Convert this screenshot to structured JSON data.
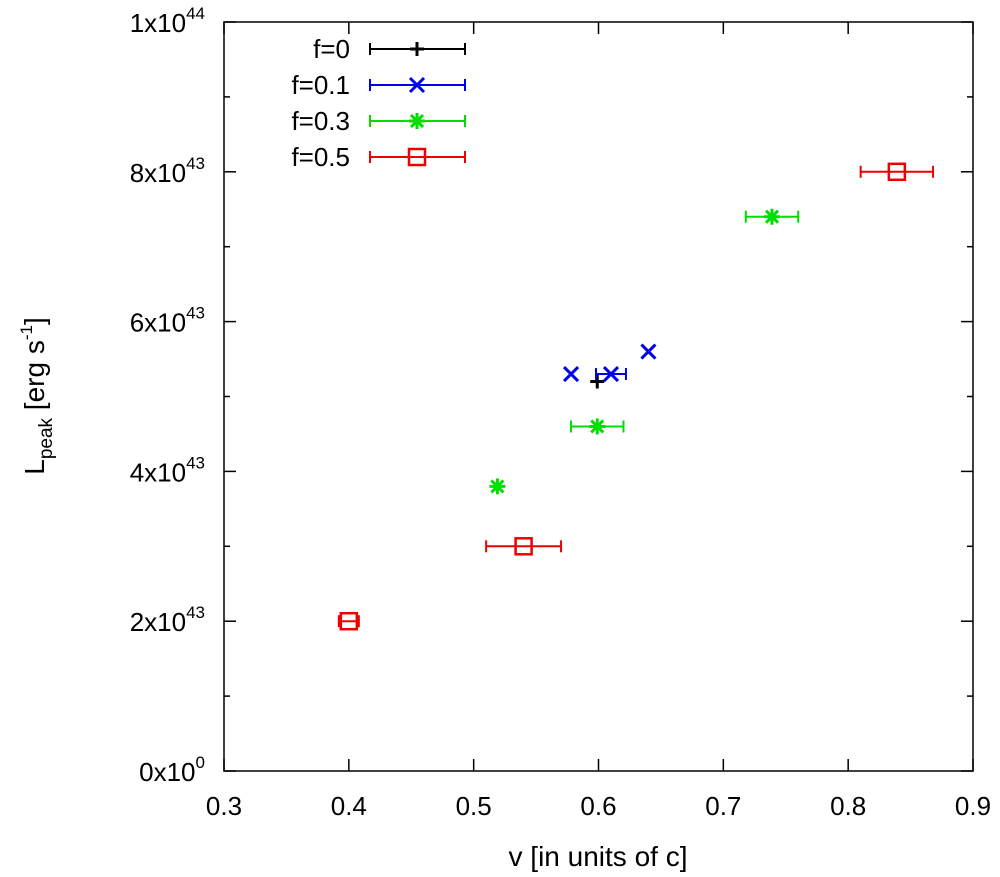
{
  "chart_data": {
    "type": "scatter",
    "title": "",
    "xlabel": "v [in units of c]",
    "ylabel": {
      "base": "L",
      "sub": "peak",
      "text": " [erg s",
      "sup": "-1",
      "close": "]"
    },
    "xlim": [
      0.3,
      0.9
    ],
    "ylim": [
      0,
      1e+44
    ],
    "x_ticks": [
      {
        "value": 0.3,
        "label": "0.3"
      },
      {
        "value": 0.4,
        "label": "0.4"
      },
      {
        "value": 0.5,
        "label": "0.5"
      },
      {
        "value": 0.6,
        "label": "0.6"
      },
      {
        "value": 0.7,
        "label": "0.7"
      },
      {
        "value": 0.8,
        "label": "0.8"
      },
      {
        "value": 0.9,
        "label": "0.9"
      }
    ],
    "y_ticks": [
      {
        "value": 0,
        "mant": "0x10",
        "exp": "0"
      },
      {
        "value": 2e+43,
        "mant": "2x10",
        "exp": "43"
      },
      {
        "value": 4e+43,
        "mant": "4x10",
        "exp": "43"
      },
      {
        "value": 6e+43,
        "mant": "6x10",
        "exp": "43"
      },
      {
        "value": 8e+43,
        "mant": "8x10",
        "exp": "43"
      },
      {
        "value": 1e+44,
        "mant": "1x10",
        "exp": "44"
      }
    ],
    "y_minor_ticks": [
      1e+43,
      3e+43,
      5e+43,
      7e+43,
      9e+43
    ],
    "legend_position": "top-left",
    "series": [
      {
        "name": "f=0",
        "color": "#000000",
        "marker": "plus",
        "points": [
          {
            "x": 0.599,
            "y": 5.2e+43,
            "xerr": 0.0
          }
        ]
      },
      {
        "name": "f=0.1",
        "color": "#0000ee",
        "marker": "cross",
        "points": [
          {
            "x": 0.578,
            "y": 5.3e+43,
            "xerr": 0.0
          },
          {
            "x": 0.61,
            "y": 5.3e+43,
            "xerr": 0.012
          },
          {
            "x": 0.64,
            "y": 5.6e+43,
            "xerr": 0.0
          }
        ]
      },
      {
        "name": "f=0.3",
        "color": "#00dd00",
        "marker": "star",
        "points": [
          {
            "x": 0.519,
            "y": 3.8e+43,
            "xerr": 0.0
          },
          {
            "x": 0.599,
            "y": 4.6e+43,
            "xerr": 0.021
          },
          {
            "x": 0.739,
            "y": 7.4e+43,
            "xerr": 0.021
          }
        ]
      },
      {
        "name": "f=0.5",
        "color": "#ee0000",
        "marker": "square",
        "points": [
          {
            "x": 0.4,
            "y": 2e+43,
            "xerr": 0.008
          },
          {
            "x": 0.54,
            "y": 3e+43,
            "xerr": 0.03
          },
          {
            "x": 0.839,
            "y": 8e+43,
            "xerr": 0.029
          }
        ]
      }
    ]
  }
}
